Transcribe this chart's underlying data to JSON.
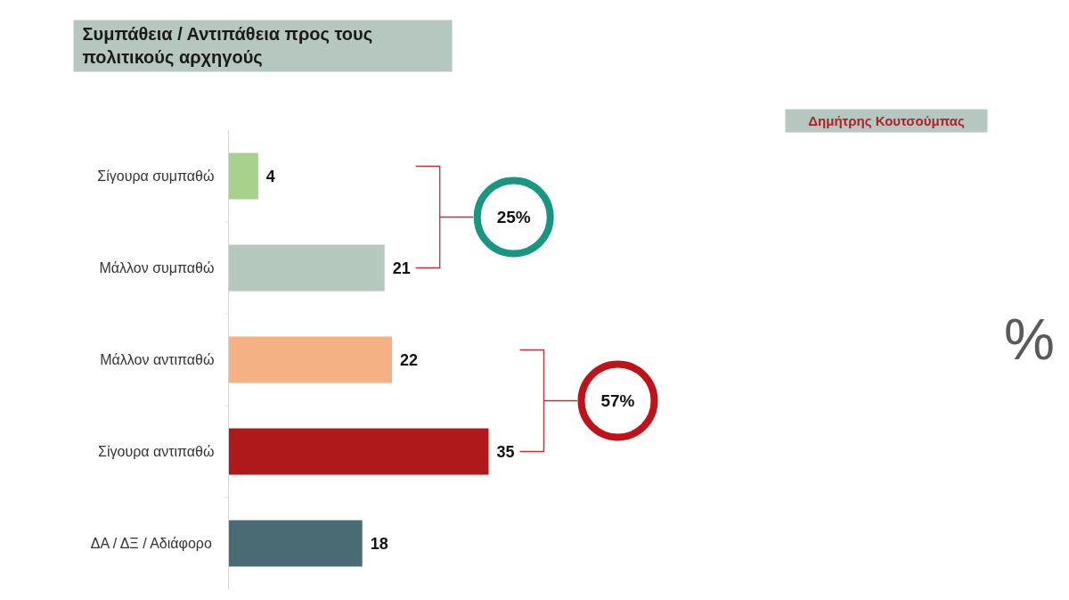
{
  "chart_data": {
    "type": "bar",
    "orientation": "horizontal",
    "title": "Συμπάθεια / Αντιπάθεια προς τους πολιτικούς αρχηγούς",
    "subtitle": "Δημήτρης Κουτσούμπας",
    "categories": [
      "Σίγουρα συμπαθώ",
      "Μάλλον συμπαθώ",
      "Μάλλον αντιπαθώ",
      "Σίγουρα αντιπαθώ",
      "ΔΑ / ΔΞ / Αδιάφορο"
    ],
    "values": [
      4,
      21,
      22,
      35,
      18
    ],
    "colors": [
      "#a9d18e",
      "#b4c8be",
      "#f4b183",
      "#b0191b",
      "#4b6b74"
    ],
    "data_labels": true,
    "annotations": [
      "25%",
      "57%",
      "%"
    ]
  }
}
